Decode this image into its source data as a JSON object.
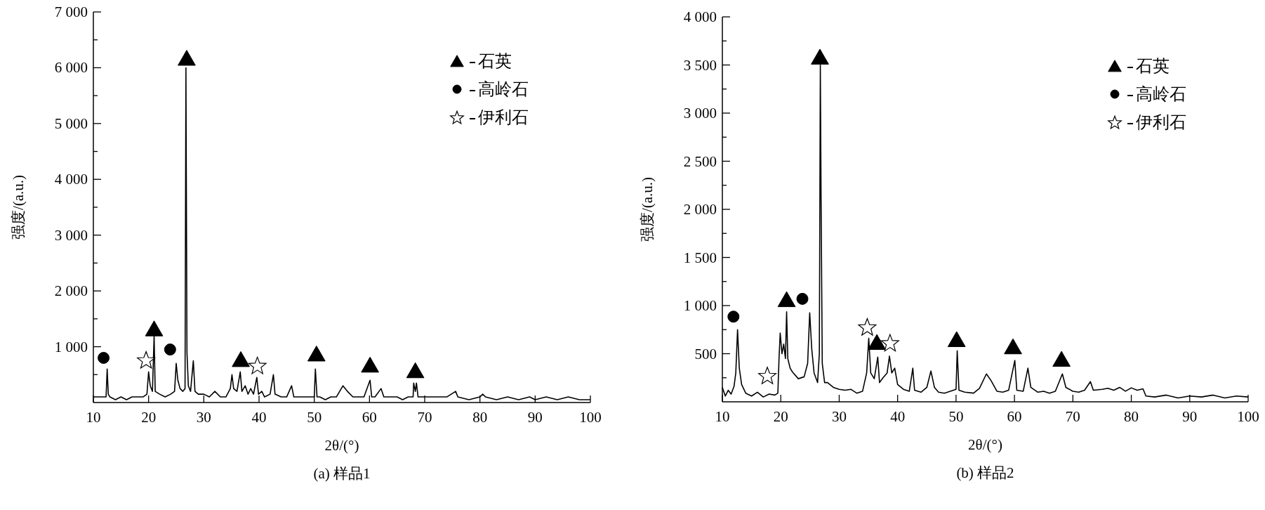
{
  "chart_data": [
    {
      "type": "line",
      "title": "(a) 样品1",
      "xlabel": "2θ/(°)",
      "ylabel": "强度/(a.u.)",
      "xlim": [
        10,
        100
      ],
      "xticks": [
        10,
        20,
        30,
        40,
        50,
        60,
        70,
        80,
        90,
        100
      ],
      "ylim": [
        0,
        7000
      ],
      "yticks": [
        {
          "value": 500,
          "label": null
        },
        {
          "value": 1000,
          "label": "1 000"
        },
        {
          "value": 1500,
          "label": null
        },
        {
          "value": 2000,
          "label": "2 000"
        },
        {
          "value": 2500,
          "label": null
        },
        {
          "value": 3000,
          "label": "3 000"
        },
        {
          "value": 3500,
          "label": null
        },
        {
          "value": 4000,
          "label": "4 000"
        },
        {
          "value": 4500,
          "label": null
        },
        {
          "value": 5000,
          "label": "5 000"
        },
        {
          "value": 5500,
          "label": null
        },
        {
          "value": 6000,
          "label": "6 000"
        },
        {
          "value": 6500,
          "label": null
        },
        {
          "value": 7000,
          "label": "7 000"
        }
      ],
      "legend": "top right",
      "series": [
        {
          "color": "#000000",
          "x": [
            10,
            11,
            12,
            12.3,
            12.5,
            12.7,
            13,
            14,
            15,
            16,
            17,
            18,
            19,
            19.7,
            20.0,
            20.3,
            20.7,
            21.0,
            21.2,
            22,
            23,
            24,
            24.7,
            25.0,
            25.3,
            25.7,
            26.2,
            26.6,
            26.76,
            26.95,
            27.2,
            27.6,
            28.1,
            28.4,
            29,
            30,
            31,
            32,
            33,
            34,
            34.8,
            35.1,
            35.4,
            36,
            36.6,
            36.9,
            37.5,
            38,
            38.5,
            39,
            39.6,
            39.9,
            40.5,
            41,
            42,
            42.6,
            42.9,
            44,
            45,
            45.9,
            46.3,
            47,
            48,
            49,
            50.0,
            50.2,
            50.5,
            51,
            52,
            53,
            54,
            55.2,
            56,
            57,
            58,
            59,
            60.1,
            60.4,
            61,
            62.1,
            62.6,
            64,
            65,
            66,
            67,
            67.9,
            68.0,
            68.3,
            68.5,
            68.8,
            70,
            72,
            74,
            75.6,
            76,
            78,
            80,
            80.5,
            81,
            83,
            85,
            87,
            89,
            90,
            92,
            94,
            96,
            98,
            100
          ],
          "values": [
            100,
            100,
            100,
            100,
            600,
            150,
            100,
            50,
            100,
            50,
            100,
            100,
            100,
            150,
            550,
            300,
            200,
            1200,
            200,
            150,
            100,
            150,
            200,
            700,
            400,
            250,
            200,
            250,
            6000,
            900,
            300,
            200,
            750,
            200,
            150,
            150,
            100,
            200,
            100,
            100,
            250,
            500,
            250,
            200,
            550,
            200,
            300,
            150,
            250,
            150,
            450,
            150,
            200,
            100,
            150,
            500,
            150,
            100,
            100,
            300,
            100,
            100,
            100,
            100,
            100,
            600,
            100,
            100,
            50,
            100,
            100,
            300,
            200,
            100,
            100,
            100,
            400,
            100,
            100,
            250,
            100,
            100,
            100,
            50,
            100,
            100,
            350,
            200,
            350,
            100,
            100,
            100,
            100,
            200,
            100,
            50,
            100,
            150,
            100,
            50,
            100,
            50,
            100,
            50,
            100,
            50,
            100,
            50,
            50
          ]
        },
        {
          "type": "scatter",
          "name": "石英",
          "marker": "triangle",
          "color": "#000000",
          "x": [
            21.0,
            26.9,
            36.7,
            50.4,
            60.1,
            68.3
          ],
          "values": [
            1300,
            6150,
            750,
            850,
            650,
            550
          ]
        },
        {
          "type": "scatter",
          "name": "高岭石",
          "marker": "circle",
          "color": "#000000",
          "x": [
            11.85,
            23.9
          ],
          "values": [
            800,
            950
          ]
        },
        {
          "type": "scatter",
          "name": "伊利石",
          "marker": "star",
          "color": "#ffffff",
          "x": [
            19.55,
            39.7
          ],
          "values": [
            750,
            650
          ]
        }
      ]
    },
    {
      "type": "line",
      "title": "(b) 样品2",
      "xlabel": "2θ/(°)",
      "ylabel": "强度/(a.u.)",
      "xlim": [
        10,
        100
      ],
      "xticks": [
        10,
        20,
        30,
        40,
        50,
        60,
        70,
        80,
        90,
        100
      ],
      "ylim": [
        0,
        4000
      ],
      "yticks": [
        {
          "value": 250,
          "label": null
        },
        {
          "value": 500,
          "label": "500"
        },
        {
          "value": 750,
          "label": null
        },
        {
          "value": 1000,
          "label": "1 000"
        },
        {
          "value": 1250,
          "label": null
        },
        {
          "value": 1500,
          "label": "1 500"
        },
        {
          "value": 1750,
          "label": null
        },
        {
          "value": 2000,
          "label": "2 000"
        },
        {
          "value": 2250,
          "label": null
        },
        {
          "value": 2500,
          "label": "2 500"
        },
        {
          "value": 2750,
          "label": null
        },
        {
          "value": 3000,
          "label": "3 000"
        },
        {
          "value": 3250,
          "label": null
        },
        {
          "value": 3500,
          "label": "3 500"
        },
        {
          "value": 3750,
          "label": null
        },
        {
          "value": 4000,
          "label": "4 000"
        }
      ],
      "legend": "top right",
      "series": [
        {
          "color": "#000000",
          "x": [
            10,
            10.5,
            11,
            11.5,
            12,
            12.3,
            12.6,
            12.9,
            13.3,
            14,
            15,
            16,
            17,
            18,
            19,
            19.5,
            19.7,
            19.9,
            20.2,
            20.5,
            20.8,
            21.0,
            21.2,
            21.6,
            22,
            23,
            24,
            24.6,
            24.95,
            25.3,
            25.7,
            26.3,
            26.6,
            26.77,
            26.9,
            27.1,
            27.5,
            28,
            29,
            30,
            31,
            32,
            33,
            34,
            34.7,
            35.06,
            35.4,
            36.0,
            36.6,
            36.9,
            37.5,
            38.2,
            38.6,
            39.0,
            39.5,
            40,
            41,
            42,
            42.6,
            42.9,
            44,
            45,
            45.7,
            46.3,
            47,
            48,
            49,
            50,
            50.2,
            50.5,
            51.5,
            53,
            54,
            55.2,
            56,
            57,
            58,
            59,
            60.06,
            60.4,
            61.5,
            62.3,
            62.8,
            64,
            65,
            66,
            67,
            68.2,
            68.8,
            70,
            71,
            72,
            73,
            73.5,
            75,
            76,
            77,
            78,
            79,
            80,
            81,
            82,
            82.5,
            84,
            86,
            88,
            90,
            92,
            94,
            96,
            98,
            100
          ],
          "values": [
            150,
            60,
            120,
            80,
            160,
            300,
            750,
            350,
            180,
            90,
            60,
            100,
            50,
            80,
            70,
            90,
            450,
            715,
            500,
            600,
            450,
            935,
            450,
            350,
            310,
            240,
            260,
            400,
            925,
            550,
            300,
            200,
            500,
            3500,
            2100,
            400,
            200,
            200,
            150,
            130,
            120,
            130,
            90,
            110,
            300,
            660,
            300,
            240,
            465,
            200,
            250,
            300,
            475,
            300,
            350,
            180,
            130,
            110,
            350,
            120,
            100,
            150,
            320,
            150,
            100,
            90,
            110,
            130,
            530,
            120,
            100,
            90,
            140,
            290,
            220,
            110,
            100,
            120,
            430,
            120,
            110,
            350,
            150,
            100,
            110,
            90,
            110,
            290,
            150,
            110,
            100,
            120,
            210,
            120,
            130,
            140,
            120,
            150,
            110,
            145,
            120,
            135,
            60,
            50,
            70,
            40,
            60,
            50,
            70,
            40,
            60,
            50
          ]
        },
        {
          "type": "scatter",
          "name": "石英",
          "marker": "triangle",
          "color": "#000000",
          "x": [
            21.0,
            26.7,
            36.45,
            50.1,
            59.75,
            68.05
          ],
          "values": [
            1050,
            3570,
            605,
            635,
            560,
            430
          ]
        },
        {
          "type": "scatter",
          "name": "高岭石",
          "marker": "circle",
          "color": "#000000",
          "x": [
            11.9,
            23.7
          ],
          "values": [
            885,
            1070
          ]
        },
        {
          "type": "scatter",
          "name": "伊利石",
          "marker": "star",
          "color": "#ffffff",
          "x": [
            17.7,
            34.8,
            38.7
          ],
          "values": [
            265,
            770,
            605
          ]
        }
      ]
    }
  ]
}
